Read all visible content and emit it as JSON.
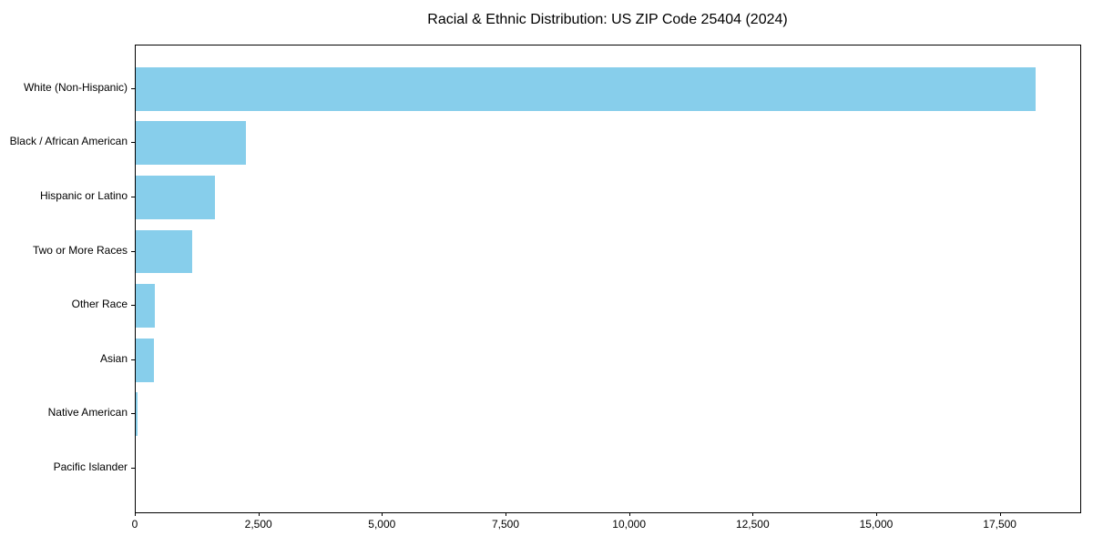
{
  "chart_data": {
    "type": "bar",
    "orientation": "horizontal",
    "title": "Racial & Ethnic Distribution: US ZIP Code 25404 (2024)",
    "categories": [
      "White (Non-Hispanic)",
      "Black / African American",
      "Hispanic or Latino",
      "Two or More Races",
      "Other Race",
      "Asian",
      "Native American",
      "Pacific Islander"
    ],
    "values": [
      18200,
      2230,
      1610,
      1150,
      395,
      360,
      35,
      0
    ],
    "xlabel": "",
    "ylabel": "",
    "xlim": [
      0,
      19110
    ],
    "xticks": [
      {
        "value": 0,
        "label": "0"
      },
      {
        "value": 2500,
        "label": "2,500"
      },
      {
        "value": 5000,
        "label": "5,000"
      },
      {
        "value": 7500,
        "label": "7,500"
      },
      {
        "value": 10000,
        "label": "10,000"
      },
      {
        "value": 12500,
        "label": "12,500"
      },
      {
        "value": 15000,
        "label": "15,000"
      },
      {
        "value": 17500,
        "label": "17,500"
      }
    ],
    "bar_color": "#87CEEB",
    "axis_color": "#000000",
    "text_color": "#000000",
    "background_color": "#ffffff",
    "grid": false,
    "legend_position": "none"
  }
}
